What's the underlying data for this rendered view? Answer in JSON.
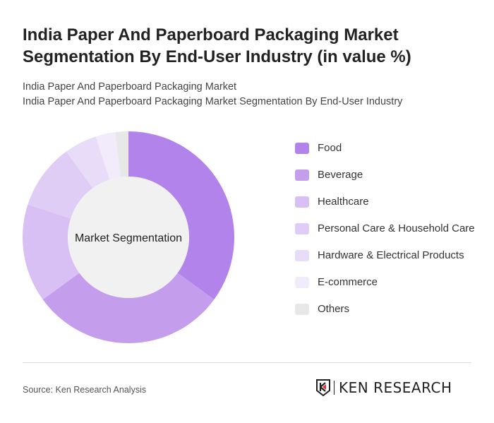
{
  "header": {
    "title": "India Paper And Paperboard Packaging Market Segmentation By End-User Industry (in value %)",
    "subtitle1": "India Paper And Paperboard Packaging Market",
    "subtitle2": "India Paper And Paperboard Packaging Market Segmentation By End-User Industry"
  },
  "chart_data": {
    "type": "pie",
    "variant": "donut",
    "center_label": "Market Segmentation",
    "legend_position": "right",
    "categories": [
      "Food",
      "Beverage",
      "Healthcare",
      "Personal Care & Household Care",
      "Hardware & Electrical Products",
      "E-commerce",
      "Others"
    ],
    "values": [
      35,
      30,
      15,
      10,
      5,
      3,
      2
    ],
    "colors": [
      "#b283ea",
      "#c49eed",
      "#d8bff4",
      "#e0cdf6",
      "#e8dcf8",
      "#f1ebfb",
      "#e8e8e8"
    ]
  },
  "footer": {
    "source": "Source: Ken Research Analysis",
    "logo": "KEN RESEARCH"
  }
}
